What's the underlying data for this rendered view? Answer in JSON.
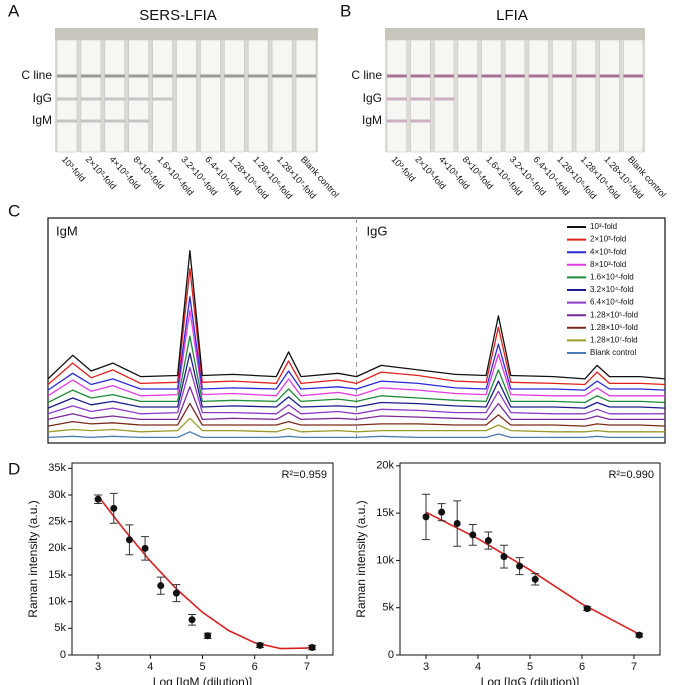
{
  "panel_labels": [
    "A",
    "B",
    "C",
    "D"
  ],
  "strips": [
    {
      "title": "SERS-LFIA",
      "row_labels": [
        "C line",
        "IgG",
        "IgM"
      ],
      "dilutions": [
        "10³-fold",
        "2×10³-fold",
        "4×10³-fold",
        "8×10³-fold",
        "1.6×10⁴-fold",
        "3.2×10⁴-fold",
        "6.4×10⁴-fold",
        "1.28×10⁵-fold",
        "1.28×10⁶-fold",
        "1.28×10⁷-fold",
        "Blank control"
      ]
    },
    {
      "title": "LFIA",
      "row_labels": [
        "C line",
        "IgG",
        "IgM"
      ],
      "dilutions": [
        "10³-fold",
        "2×10³-fold",
        "4×10³-fold",
        "8×10³-fold",
        "1.6×10⁴-fold",
        "3.2×10⁴-fold",
        "6.4×10⁴-fold",
        "1.28×10⁵-fold",
        "1.28×10⁶-fold",
        "1.28×10⁷-fold",
        "Blank control"
      ]
    }
  ],
  "chart_data": [
    {
      "type": "line",
      "annotations": [
        "IgM",
        "IgG"
      ],
      "xlim": [
        0,
        100
      ],
      "ylim": [
        0,
        200
      ],
      "x": [
        0,
        4,
        7,
        10.5,
        15,
        21,
        23,
        25,
        30,
        37,
        39,
        41,
        47,
        50,
        54,
        60,
        66,
        71,
        73,
        75,
        82,
        87,
        89,
        91,
        96,
        100
      ],
      "series": [
        {
          "name": "10³-fold",
          "color": "#111111",
          "values": [
            57,
            78,
            64,
            71,
            59,
            60,
            171,
            60,
            61,
            59,
            81,
            59,
            62,
            59,
            69,
            65,
            61,
            60,
            113,
            60,
            59,
            57,
            69,
            59,
            59,
            57
          ]
        },
        {
          "name": "2×10³-fold",
          "color": "#e0201b",
          "values": [
            52,
            71,
            58,
            65,
            53,
            54,
            155,
            54,
            55,
            53,
            73,
            53,
            56,
            53,
            63,
            60,
            55,
            54,
            103,
            54,
            53,
            52,
            63,
            53,
            53,
            52
          ]
        },
        {
          "name": "4×10³-fold",
          "color": "#2a2ad8",
          "values": [
            47,
            62,
            52,
            57,
            48,
            48,
            130,
            48,
            49,
            48,
            64,
            48,
            50,
            48,
            55,
            53,
            49,
            48,
            88,
            48,
            48,
            47,
            55,
            48,
            48,
            47
          ]
        },
        {
          "name": "8×10³-fold",
          "color": "#e33be3",
          "values": [
            42,
            56,
            46,
            51,
            42,
            43,
            118,
            43,
            44,
            42,
            57,
            42,
            45,
            42,
            49,
            47,
            44,
            43,
            79,
            43,
            42,
            42,
            49,
            42,
            42,
            42
          ]
        },
        {
          "name": "1.6×10⁴-fold",
          "color": "#1e8a3a",
          "values": [
            36,
            47,
            40,
            43,
            37,
            37,
            95,
            37,
            38,
            37,
            48,
            37,
            39,
            37,
            42,
            40,
            38,
            37,
            65,
            37,
            37,
            36,
            42,
            37,
            37,
            36
          ]
        },
        {
          "name": "3.2×10⁴-fold",
          "color": "#1c1c8c",
          "values": [
            31,
            40,
            34,
            37,
            32,
            32,
            80,
            32,
            33,
            32,
            41,
            32,
            33,
            32,
            36,
            35,
            33,
            32,
            55,
            32,
            32,
            31,
            36,
            32,
            32,
            31
          ]
        },
        {
          "name": "6.4×10⁴-fold",
          "color": "#8c3cc8",
          "values": [
            26,
            33,
            28,
            31,
            26,
            27,
            67,
            27,
            27,
            26,
            34,
            26,
            28,
            26,
            30,
            29,
            27,
            27,
            46,
            27,
            26,
            26,
            30,
            26,
            26,
            26
          ]
        },
        {
          "name": "1.28×10⁵-fold",
          "color": "#7a2a9a",
          "values": [
            21,
            26,
            22,
            24,
            21,
            21,
            50,
            21,
            22,
            21,
            27,
            21,
            22,
            21,
            24,
            23,
            22,
            21,
            35,
            21,
            21,
            21,
            24,
            21,
            21,
            21
          ]
        },
        {
          "name": "1.28×10⁶-fold",
          "color": "#7a2a1a",
          "values": [
            15,
            19,
            17,
            18,
            16,
            16,
            35,
            16,
            16,
            16,
            19,
            16,
            16,
            16,
            17,
            17,
            16,
            16,
            25,
            16,
            16,
            15,
            17,
            16,
            16,
            15
          ]
        },
        {
          "name": "1.28×10⁷-fold",
          "color": "#9a9a2a",
          "values": [
            10,
            12,
            11,
            12,
            10,
            11,
            22,
            11,
            11,
            10,
            13,
            10,
            11,
            10,
            11,
            11,
            11,
            11,
            16,
            11,
            10,
            10,
            11,
            10,
            10,
            10
          ]
        },
        {
          "name": "Blank control",
          "color": "#4a7ab0",
          "values": [
            5,
            6,
            5,
            6,
            5,
            5,
            10,
            5,
            5,
            5,
            6,
            5,
            5,
            5,
            6,
            5,
            5,
            5,
            8,
            5,
            5,
            5,
            6,
            5,
            5,
            5
          ]
        }
      ]
    },
    {
      "type": "scatter",
      "x_label": "Log [IgM (dilution)]",
      "y_label": "Raman intensity (a.u.)",
      "annotation": "R²=0.959",
      "color": "#111111",
      "fit_color": "#d62020",
      "x": [
        3.0,
        3.3,
        3.6,
        3.9,
        4.2,
        4.5,
        4.8,
        5.1,
        6.1,
        7.1
      ],
      "values": [
        29200,
        27500,
        21600,
        20000,
        13000,
        11600,
        6600,
        3600,
        1800,
        1400
      ],
      "errors": [
        800,
        2800,
        2800,
        2200,
        1600,
        1600,
        1000,
        500,
        400,
        400
      ],
      "fit_x": [
        3,
        3.5,
        4,
        4.5,
        5,
        5.5,
        6,
        6.5,
        7,
        7.1
      ],
      "fit_values": [
        29800,
        23500,
        17600,
        12400,
        8000,
        4600,
        2300,
        1200,
        1300,
        1500
      ],
      "xlim": [
        2.5,
        7.5
      ],
      "ylim": [
        0,
        36000
      ],
      "xticks": [
        3,
        4,
        5,
        6,
        7
      ],
      "yticks": [
        0,
        {
          "value": 5000,
          "label": "5k"
        },
        {
          "value": 10000,
          "label": "10k"
        },
        {
          "value": 15000,
          "label": "15k"
        },
        {
          "value": 20000,
          "label": "20k"
        },
        {
          "value": 25000,
          "label": "25k"
        },
        {
          "value": 30000,
          "label": "30k"
        },
        {
          "value": 35000,
          "label": "35k"
        }
      ]
    },
    {
      "type": "scatter",
      "x_label": "Log [IgG (dilution)]",
      "y_label": "Raman intensity (a.u.)",
      "annotation": "R²=0.990",
      "color": "#111111",
      "fit_color": "#d62020",
      "x": [
        3.0,
        3.3,
        3.6,
        3.9,
        4.2,
        4.5,
        4.8,
        5.1,
        6.1,
        7.1
      ],
      "values": [
        14600,
        15100,
        13900,
        12700,
        12100,
        10400,
        9400,
        8000,
        4900,
        2100
      ],
      "errors": [
        2400,
        900,
        2400,
        1100,
        900,
        1200,
        900,
        600,
        200,
        200
      ],
      "fit_x": [
        3,
        4,
        5,
        6,
        7.1
      ],
      "fit_values": [
        15100,
        12300,
        9000,
        5400,
        2200
      ],
      "xlim": [
        2.5,
        7.5
      ],
      "ylim": [
        0,
        20300
      ],
      "xticks": [
        3,
        4,
        5,
        6,
        7
      ],
      "yticks": [
        0,
        {
          "value": 5000,
          "label": "5k"
        },
        {
          "value": 10000,
          "label": "10k"
        },
        {
          "value": 15000,
          "label": "15k"
        },
        {
          "value": 20000,
          "label": "20k"
        }
      ]
    }
  ]
}
